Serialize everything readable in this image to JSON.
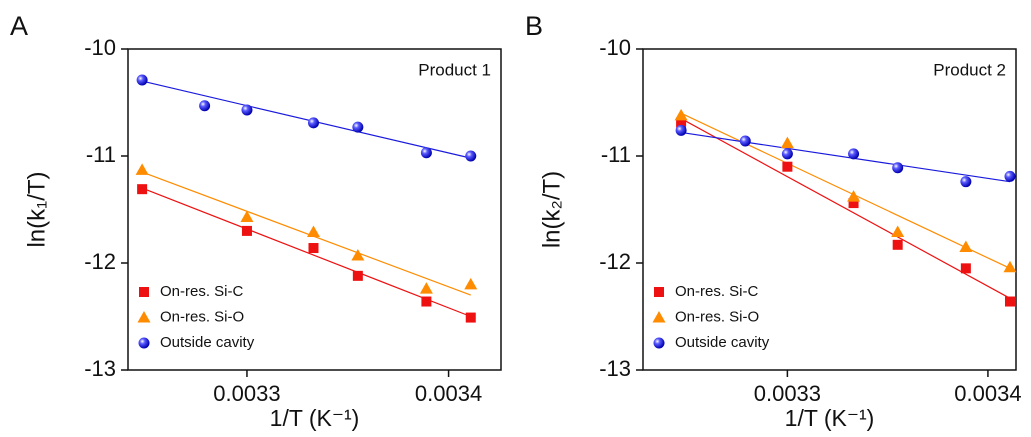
{
  "chart_data": [
    {
      "type": "scatter",
      "panel_label": "A",
      "annotation": "Product 1",
      "x_label": "1/T (K⁻¹)",
      "y_label": "ln(k₁/T)",
      "xlim": [
        0.003241,
        0.003426
      ],
      "xticks": [
        0.0033,
        0.0034
      ],
      "ylim": [
        -13,
        -10
      ],
      "yticks": [
        -10,
        -11,
        -12,
        -13
      ],
      "legend": "lower left",
      "series": [
        {
          "name": "On-res. Si-C",
          "color": "#ee1111",
          "marker": "square",
          "x": [
            0.003248,
            0.0033,
            0.003333,
            0.003355,
            0.003389,
            0.003411
          ],
          "values": [
            -11.31,
            -11.7,
            -11.86,
            -12.12,
            -12.36,
            -12.51
          ],
          "fit_x": [
            0.003248,
            0.003411
          ],
          "fit_y": [
            -11.3,
            -12.5
          ]
        },
        {
          "name": "On-res. Si-O",
          "color": "#ff8c00",
          "marker": "triangle",
          "x": [
            0.003248,
            0.0033,
            0.003333,
            0.003355,
            0.003389,
            0.003411
          ],
          "values": [
            -11.13,
            -11.57,
            -11.71,
            -11.93,
            -12.24,
            -12.2
          ],
          "fit_x": [
            0.003248,
            0.003411
          ],
          "fit_y": [
            -11.15,
            -12.3
          ]
        },
        {
          "name": "Outside cavity",
          "color": "#1a1adc",
          "marker": "circle",
          "x": [
            0.003248,
            0.003279,
            0.0033,
            0.003333,
            0.003355,
            0.003389,
            0.003411
          ],
          "values": [
            -10.29,
            -10.53,
            -10.57,
            -10.69,
            -10.73,
            -10.97,
            -11.0
          ],
          "fit_x": [
            0.003248,
            0.003411
          ],
          "fit_y": [
            -10.3,
            -11.02
          ]
        }
      ]
    },
    {
      "type": "scatter",
      "panel_label": "B",
      "annotation": "Product 2",
      "x_label": "1/T (K⁻¹)",
      "y_label": "ln(k₂/T)",
      "xlim": [
        0.003228,
        0.003414
      ],
      "xticks": [
        0.0033,
        0.0034
      ],
      "ylim": [
        -13,
        -10
      ],
      "yticks": [
        -10,
        -11,
        -12,
        -13
      ],
      "legend": "lower left",
      "series": [
        {
          "name": "On-res. Si-C",
          "color": "#ee1111",
          "marker": "square",
          "x": [
            0.003247,
            0.0033,
            0.003333,
            0.003355,
            0.003389,
            0.003411
          ],
          "values": [
            -10.69,
            -11.1,
            -11.44,
            -11.83,
            -12.05,
            -12.36
          ],
          "fit_x": [
            0.003247,
            0.003411
          ],
          "fit_y": [
            -10.65,
            -12.33
          ]
        },
        {
          "name": "On-res. Si-O",
          "color": "#ff8c00",
          "marker": "triangle",
          "x": [
            0.003247,
            0.0033,
            0.003333,
            0.003355,
            0.003389,
            0.003411
          ],
          "values": [
            -10.62,
            -10.88,
            -11.38,
            -11.71,
            -11.85,
            -12.04
          ],
          "fit_x": [
            0.003247,
            0.003411
          ],
          "fit_y": [
            -10.6,
            -12.05
          ]
        },
        {
          "name": "Outside cavity",
          "color": "#1a1adc",
          "marker": "circle",
          "x": [
            0.003247,
            0.003279,
            0.0033,
            0.003333,
            0.003355,
            0.003389,
            0.003411
          ],
          "values": [
            -10.76,
            -10.86,
            -10.98,
            -10.98,
            -11.11,
            -11.24,
            -11.19
          ],
          "fit_x": [
            0.003247,
            0.003411
          ],
          "fit_y": [
            -10.78,
            -11.24
          ]
        }
      ]
    }
  ]
}
